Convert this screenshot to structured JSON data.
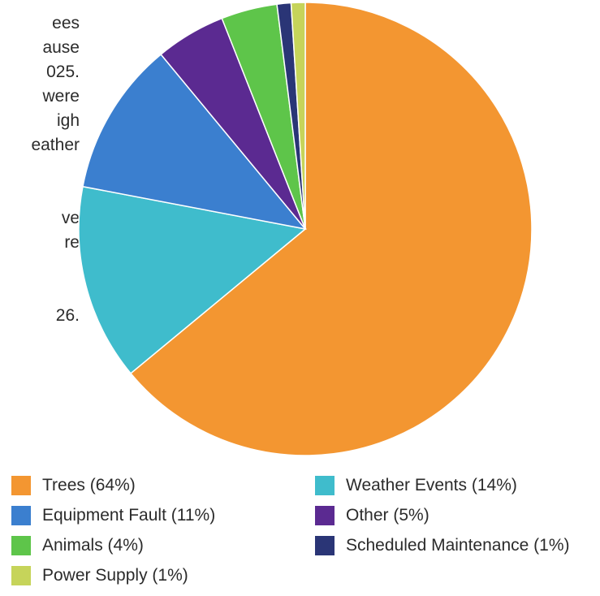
{
  "paragraph_lines": [
    "ees",
    "ause",
    "025.",
    "were",
    "igh",
    "eather",
    "",
    "",
    "ve",
    "re",
    "",
    "",
    "26."
  ],
  "chart_data": {
    "type": "pie",
    "title": "",
    "slices": [
      {
        "label": "Trees",
        "value": 64,
        "legend": "Trees (64%)",
        "color": "#f39631"
      },
      {
        "label": "Weather Events",
        "value": 14,
        "legend": "Weather Events (14%)",
        "color": "#3fbccc"
      },
      {
        "label": "Equipment Fault",
        "value": 11,
        "legend": "Equipment Fault (11%)",
        "color": "#3b7fcf"
      },
      {
        "label": "Other",
        "value": 5,
        "legend": "Other (5%)",
        "color": "#5b2a91"
      },
      {
        "label": "Animals",
        "value": 4,
        "legend": "Animals (4%)",
        "color": "#5ec54a"
      },
      {
        "label": "Scheduled Maintenance",
        "value": 1,
        "legend": "Scheduled Maintenance (1%)",
        "color": "#2a3576"
      },
      {
        "label": "Power Supply",
        "value": 1,
        "legend": "Power Supply (1%)",
        "color": "#c6d45a"
      }
    ],
    "legend_position": "bottom"
  }
}
